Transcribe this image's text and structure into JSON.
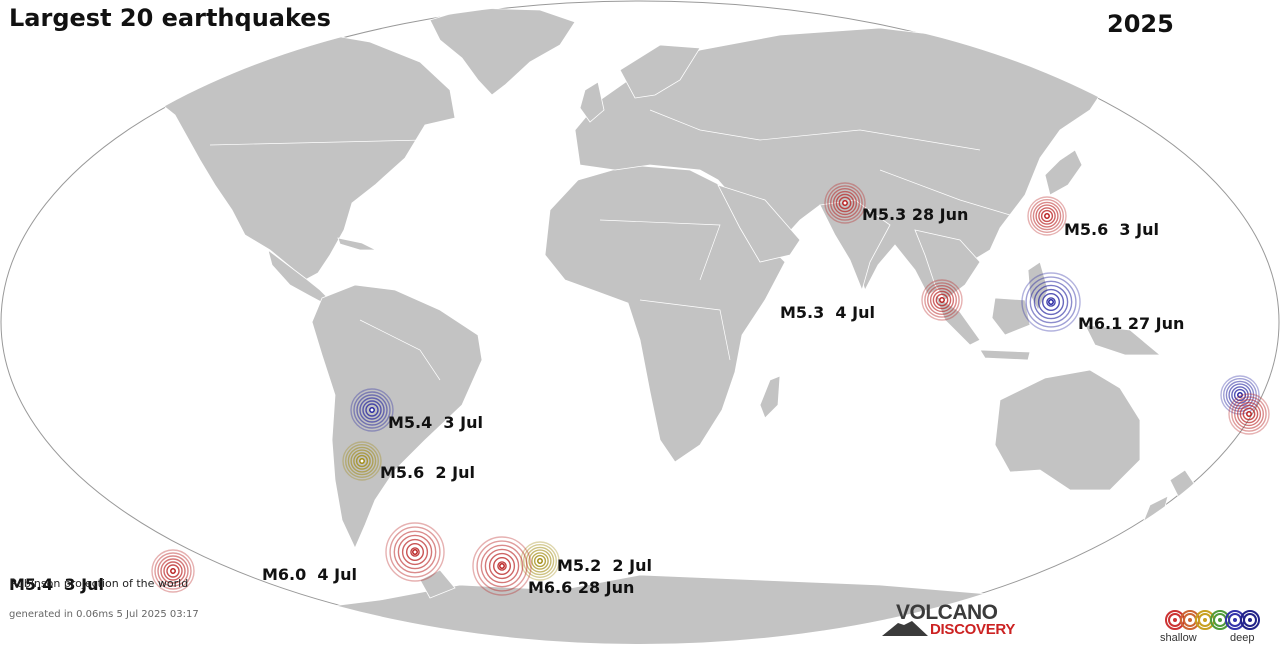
{
  "title": "Largest 20 earthquakes",
  "year": "2025",
  "projection_note": "Robinson projection of the world",
  "generated": "generated in 0.06ms  5 Jul 2025 03:17",
  "logo": {
    "top": "VOLCANO",
    "bottom": "DISCOVERY"
  },
  "legend": {
    "shallow": "shallow",
    "deep": "deep",
    "colors": [
      "#cc3333",
      "#cc6633",
      "#c8a020",
      "#4f9b3b",
      "#3333aa",
      "#222288"
    ]
  },
  "colors": {
    "ocean": "#ffffff",
    "land": "#c3c3c3",
    "border": "#ffffff",
    "outline": "#999999",
    "depth": {
      "shallow": "#b82020",
      "intermediate": "#a08a10",
      "deep": "#2424a0"
    }
  },
  "earthquakes": [
    {
      "label": "M5.3 28 Jun",
      "magnitude": 5.3,
      "date": "28 Jun",
      "depth_class": "shallow"
    },
    {
      "label": "M5.6  3 Jul",
      "magnitude": 5.6,
      "date": "3 Jul",
      "depth_class": "shallow"
    },
    {
      "label": "M5.3  4 Jul",
      "magnitude": 5.3,
      "date": "4 Jul",
      "depth_class": "shallow"
    },
    {
      "label": "",
      "magnitude": null,
      "date": "",
      "depth_class": "shallow"
    },
    {
      "label": "M6.1 27 Jun",
      "magnitude": 6.1,
      "date": "27 Jun",
      "depth_class": "deep"
    },
    {
      "label": "",
      "magnitude": null,
      "date": "",
      "depth_class": "deep"
    },
    {
      "label": "",
      "magnitude": null,
      "date": "",
      "depth_class": "shallow"
    },
    {
      "label": "M5.4  3 Jul",
      "magnitude": 5.4,
      "date": "3 Jul",
      "depth_class": "deep"
    },
    {
      "label": "M5.6  2 Jul",
      "magnitude": 5.6,
      "date": "2 Jul",
      "depth_class": "intermediate"
    },
    {
      "label": "M6.0  4 Jul",
      "magnitude": 6.0,
      "date": "4 Jul",
      "depth_class": "shallow"
    },
    {
      "label": "M5.4  3 Jul",
      "magnitude": 5.4,
      "date": "3 Jul",
      "depth_class": "shallow"
    },
    {
      "label": "M5.2  2 Jul",
      "magnitude": 5.2,
      "date": "2 Jul",
      "depth_class": "intermediate"
    },
    {
      "label": "M6.6 28 Jun",
      "magnitude": 6.6,
      "date": "28 Jun",
      "depth_class": "shallow"
    },
    {
      "label": "",
      "magnitude": null,
      "date": "",
      "depth_class": "shallow"
    }
  ]
}
